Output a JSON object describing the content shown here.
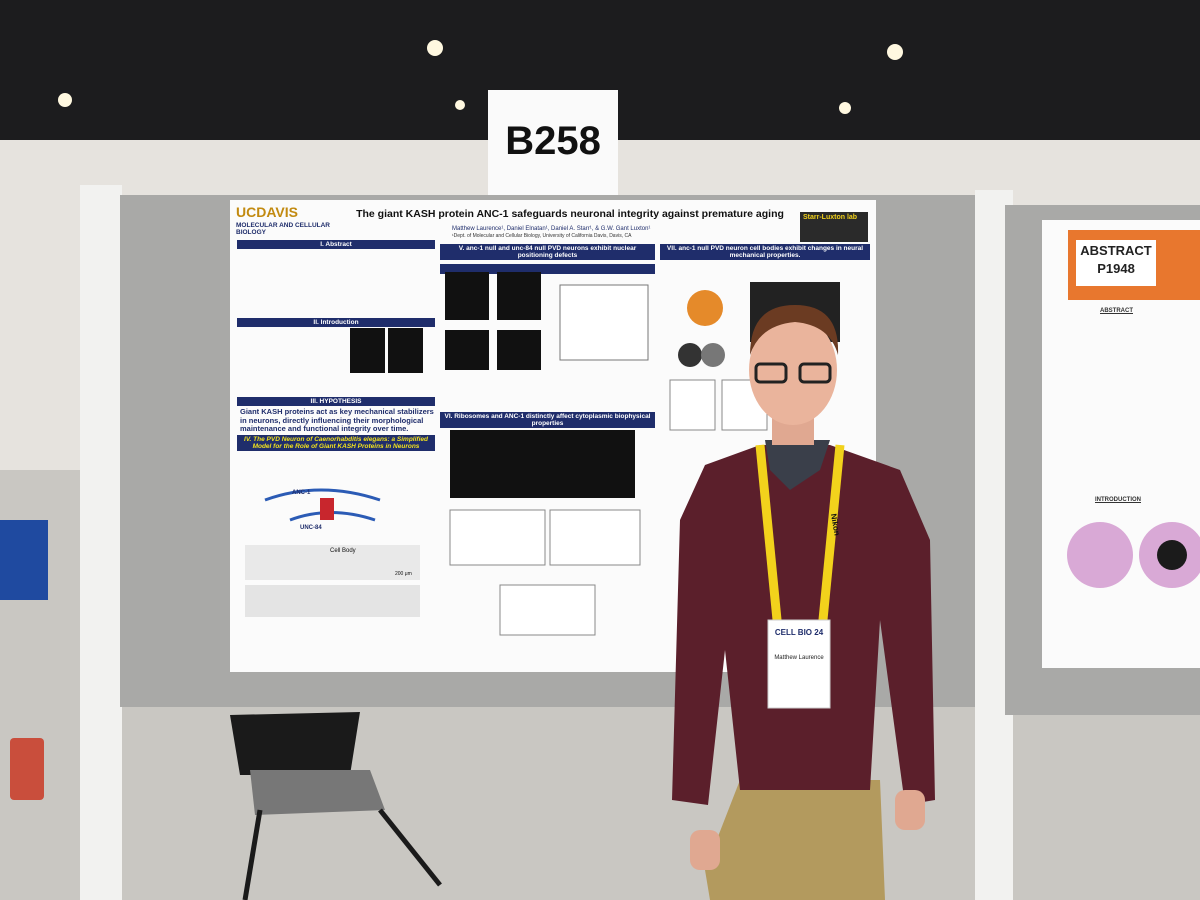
{
  "sign": "B258",
  "poster": {
    "logo": "UCDAVIS",
    "logo_sub": "MOLECULAR AND CELLULAR BIOLOGY",
    "title": "The giant KASH protein ANC-1 safeguards neuronal integrity against premature aging",
    "authors": "Matthew Laurence¹, Daniel Elnatan¹, Daniel A. Starr¹, & G.W. Gant Luxton¹",
    "affiliation": "¹Dept. of Molecular and Cellular Biology, University of California Davis, Davis, CA",
    "lab": "Starr-Luxton lab",
    "sections": [
      "I. Abstract",
      "II. Introduction",
      "III. HYPOTHESIS",
      "IV. The PVD Neuron of Caenorhabditis elegans: a Simplified Model for the Role of Giant KASH Proteins in Neurons",
      "V. anc-1 null and unc-84 null PVD neurons exhibit nuclear positioning defects",
      "VI. Ribosomes and ANC-1 distinctly affect cytoplasmic biophysical properties",
      "VII. anc-1 null PVD neuron cell bodies exhibit changes in neural mechanical properties."
    ],
    "hypothesis": "Giant KASH proteins act as key mechanical stabilizers in neurons, directly influencing their morphological maintenance and functional integrity over time.",
    "diagram_labels": [
      "ANC-1",
      "UNC-84",
      "Cell Body",
      "200 μm"
    ]
  },
  "neighbor_poster": {
    "abstract_box": [
      "ABSTRACT",
      "P1948"
    ],
    "headings": [
      "ABSTRACT",
      "INTRODUCTION"
    ]
  },
  "badge": {
    "event": "CELL BIO 24",
    "name": "Matthew Laurence"
  },
  "lanyard": "Nikon"
}
